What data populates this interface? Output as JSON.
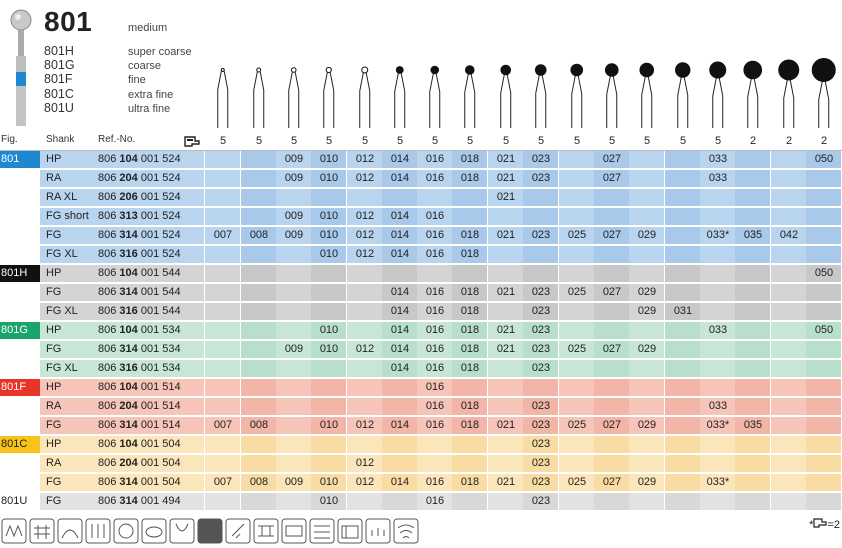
{
  "header": {
    "number": "801",
    "grit_default": "medium",
    "variants": [
      {
        "code": "801H",
        "grit": "super coarse"
      },
      {
        "code": "801G",
        "grit": "coarse"
      },
      {
        "code": "801F",
        "grit": "fine"
      },
      {
        "code": "801C",
        "grit": "extra fine"
      },
      {
        "code": "801U",
        "grit": "ultra fine"
      }
    ]
  },
  "columns": {
    "fig": "Fig.",
    "shank": "Shank",
    "ref": "Ref.-No.",
    "pack_icon": "pack-icon",
    "pack_qty": [
      "5",
      "5",
      "5",
      "5",
      "5",
      "5",
      "5",
      "5",
      "5",
      "5",
      "5",
      "5",
      "5",
      "5",
      "5",
      "2",
      "2",
      "2"
    ]
  },
  "footer": {
    "note": "=2",
    "note_mark": "*"
  },
  "groups": [
    {
      "fig": "801",
      "fig_color": "#1e88d0",
      "fig_text_color": "#ffffff",
      "row_color": "#b9d4ef",
      "alt_color": "#a9c9ea",
      "rows": [
        {
          "shank": "HP",
          "ref_pre": "806 ",
          "ref_bold": "104",
          "ref_post": " 001 524",
          "sizes": [
            "",
            "",
            "009",
            "010",
            "012",
            "014",
            "016",
            "018",
            "021",
            "023",
            "",
            "027",
            "",
            "",
            "033",
            "",
            "",
            "050"
          ]
        },
        {
          "shank": "RA",
          "ref_pre": "806 ",
          "ref_bold": "204",
          "ref_post": " 001 524",
          "sizes": [
            "",
            "",
            "009",
            "010",
            "012",
            "014",
            "016",
            "018",
            "021",
            "023",
            "",
            "027",
            "",
            "",
            "033",
            "",
            "",
            ""
          ]
        },
        {
          "shank": "RA XL",
          "ref_pre": "806 ",
          "ref_bold": "206",
          "ref_post": " 001 524",
          "sizes": [
            "",
            "",
            "",
            "",
            "",
            "",
            "",
            "",
            "021",
            "",
            "",
            "",
            "",
            "",
            "",
            "",
            "",
            ""
          ]
        },
        {
          "shank": "FG short",
          "ref_pre": "806 ",
          "ref_bold": "313",
          "ref_post": " 001 524",
          "sizes": [
            "",
            "",
            "009",
            "010",
            "012",
            "014",
            "016",
            "",
            "",
            "",
            "",
            "",
            "",
            "",
            "",
            "",
            "",
            ""
          ]
        },
        {
          "shank": "FG",
          "ref_pre": "806 ",
          "ref_bold": "314",
          "ref_post": " 001 524",
          "sizes": [
            "007",
            "008",
            "009",
            "010",
            "012",
            "014",
            "016",
            "018",
            "021",
            "023",
            "025",
            "027",
            "029",
            "",
            "033*",
            "035",
            "042",
            ""
          ]
        },
        {
          "shank": "FG XL",
          "ref_pre": "806 ",
          "ref_bold": "316",
          "ref_post": " 001 524",
          "sizes": [
            "",
            "",
            "",
            "010",
            "012",
            "014",
            "016",
            "018",
            "",
            "",
            "",
            "",
            "",
            "",
            "",
            "",
            "",
            ""
          ]
        }
      ]
    },
    {
      "fig": "801H",
      "fig_color": "#111111",
      "fig_text_color": "#ffffff",
      "row_color": "#d4d4d4",
      "alt_color": "#c8c8c8",
      "rows": [
        {
          "shank": "HP",
          "ref_pre": "806 ",
          "ref_bold": "104",
          "ref_post": " 001 544",
          "sizes": [
            "",
            "",
            "",
            "",
            "",
            "",
            "",
            "",
            "",
            "",
            "",
            "",
            "",
            "",
            "",
            "",
            "",
            "050"
          ]
        },
        {
          "shank": "FG",
          "ref_pre": "806 ",
          "ref_bold": "314",
          "ref_post": " 001 544",
          "sizes": [
            "",
            "",
            "",
            "",
            "",
            "014",
            "016",
            "018",
            "021",
            "023",
            "025",
            "027",
            "029",
            "",
            "",
            "",
            "",
            ""
          ]
        },
        {
          "shank": "FG XL",
          "ref_pre": "806 ",
          "ref_bold": "316",
          "ref_post": " 001 544",
          "sizes": [
            "",
            "",
            "",
            "",
            "",
            "014",
            "016",
            "018",
            "",
            "023",
            "",
            "",
            "029",
            "031",
            "",
            "",
            "",
            ""
          ]
        }
      ]
    },
    {
      "fig": "801G",
      "fig_color": "#1aa36a",
      "fig_text_color": "#ffffff",
      "row_color": "#c7e6d6",
      "alt_color": "#b8dfcb",
      "rows": [
        {
          "shank": "HP",
          "ref_pre": "806 ",
          "ref_bold": "104",
          "ref_post": " 001 534",
          "sizes": [
            "",
            "",
            "",
            "010",
            "",
            "014",
            "016",
            "018",
            "021",
            "023",
            "",
            "",
            "",
            "",
            "033",
            "",
            "",
            "050"
          ]
        },
        {
          "shank": "FG",
          "ref_pre": "806 ",
          "ref_bold": "314",
          "ref_post": " 001 534",
          "sizes": [
            "",
            "",
            "009",
            "010",
            "012",
            "014",
            "016",
            "018",
            "021",
            "023",
            "025",
            "027",
            "029",
            "",
            "",
            "",
            "",
            ""
          ]
        },
        {
          "shank": "FG XL",
          "ref_pre": "806 ",
          "ref_bold": "316",
          "ref_post": " 001 534",
          "sizes": [
            "",
            "",
            "",
            "",
            "",
            "014",
            "016",
            "018",
            "",
            "023",
            "",
            "",
            "",
            "",
            "",
            "",
            "",
            ""
          ]
        }
      ]
    },
    {
      "fig": "801F",
      "fig_color": "#e8352a",
      "fig_text_color": "#ffffff",
      "row_color": "#f6c4b8",
      "alt_color": "#f2b5a7",
      "rows": [
        {
          "shank": "HP",
          "ref_pre": "806 ",
          "ref_bold": "104",
          "ref_post": " 001 514",
          "sizes": [
            "",
            "",
            "",
            "",
            "",
            "",
            "016",
            "",
            "",
            "",
            "",
            "",
            "",
            "",
            "",
            "",
            "",
            ""
          ]
        },
        {
          "shank": "RA",
          "ref_pre": "806 ",
          "ref_bold": "204",
          "ref_post": " 001 514",
          "sizes": [
            "",
            "",
            "",
            "",
            "",
            "",
            "016",
            "018",
            "",
            "023",
            "",
            "",
            "",
            "",
            "033",
            "",
            "",
            ""
          ]
        },
        {
          "shank": "FG",
          "ref_pre": "806 ",
          "ref_bold": "314",
          "ref_post": " 001 514",
          "sizes": [
            "007",
            "008",
            "",
            "010",
            "012",
            "014",
            "016",
            "018",
            "021",
            "023",
            "025",
            "027",
            "029",
            "",
            "033*",
            "035",
            "",
            ""
          ]
        }
      ]
    },
    {
      "fig": "801C",
      "fig_color": "#f7c21a",
      "fig_text_color": "#222222",
      "row_color": "#fbe5ba",
      "alt_color": "#f8dca4",
      "rows": [
        {
          "shank": "HP",
          "ref_pre": "806 ",
          "ref_bold": "104",
          "ref_post": " 001 504",
          "sizes": [
            "",
            "",
            "",
            "",
            "",
            "",
            "",
            "",
            "",
            "023",
            "",
            "",
            "",
            "",
            "",
            "",
            "",
            ""
          ]
        },
        {
          "shank": "RA",
          "ref_pre": "806 ",
          "ref_bold": "204",
          "ref_post": " 001 504",
          "sizes": [
            "",
            "",
            "",
            "",
            "012",
            "",
            "",
            "",
            "",
            "023",
            "",
            "",
            "",
            "",
            "",
            "",
            "",
            ""
          ]
        },
        {
          "shank": "FG",
          "ref_pre": "806 ",
          "ref_bold": "314",
          "ref_post": " 001 504",
          "sizes": [
            "007",
            "008",
            "009",
            "010",
            "012",
            "014",
            "016",
            "018",
            "021",
            "023",
            "025",
            "027",
            "029",
            "",
            "033*",
            "",
            "",
            ""
          ]
        }
      ]
    },
    {
      "fig": "801U",
      "fig_color": "#ffffff",
      "fig_text_color": "#222222",
      "row_color": "#e2e2e2",
      "alt_color": "#d8d8d8",
      "rows": [
        {
          "shank": "FG",
          "ref_pre": "806 ",
          "ref_bold": "314",
          "ref_post": " 001 494",
          "sizes": [
            "",
            "",
            "",
            "010",
            "",
            "",
            "016",
            "",
            "",
            "023",
            "",
            "",
            "",
            "",
            "",
            "",
            "",
            ""
          ]
        }
      ]
    }
  ]
}
